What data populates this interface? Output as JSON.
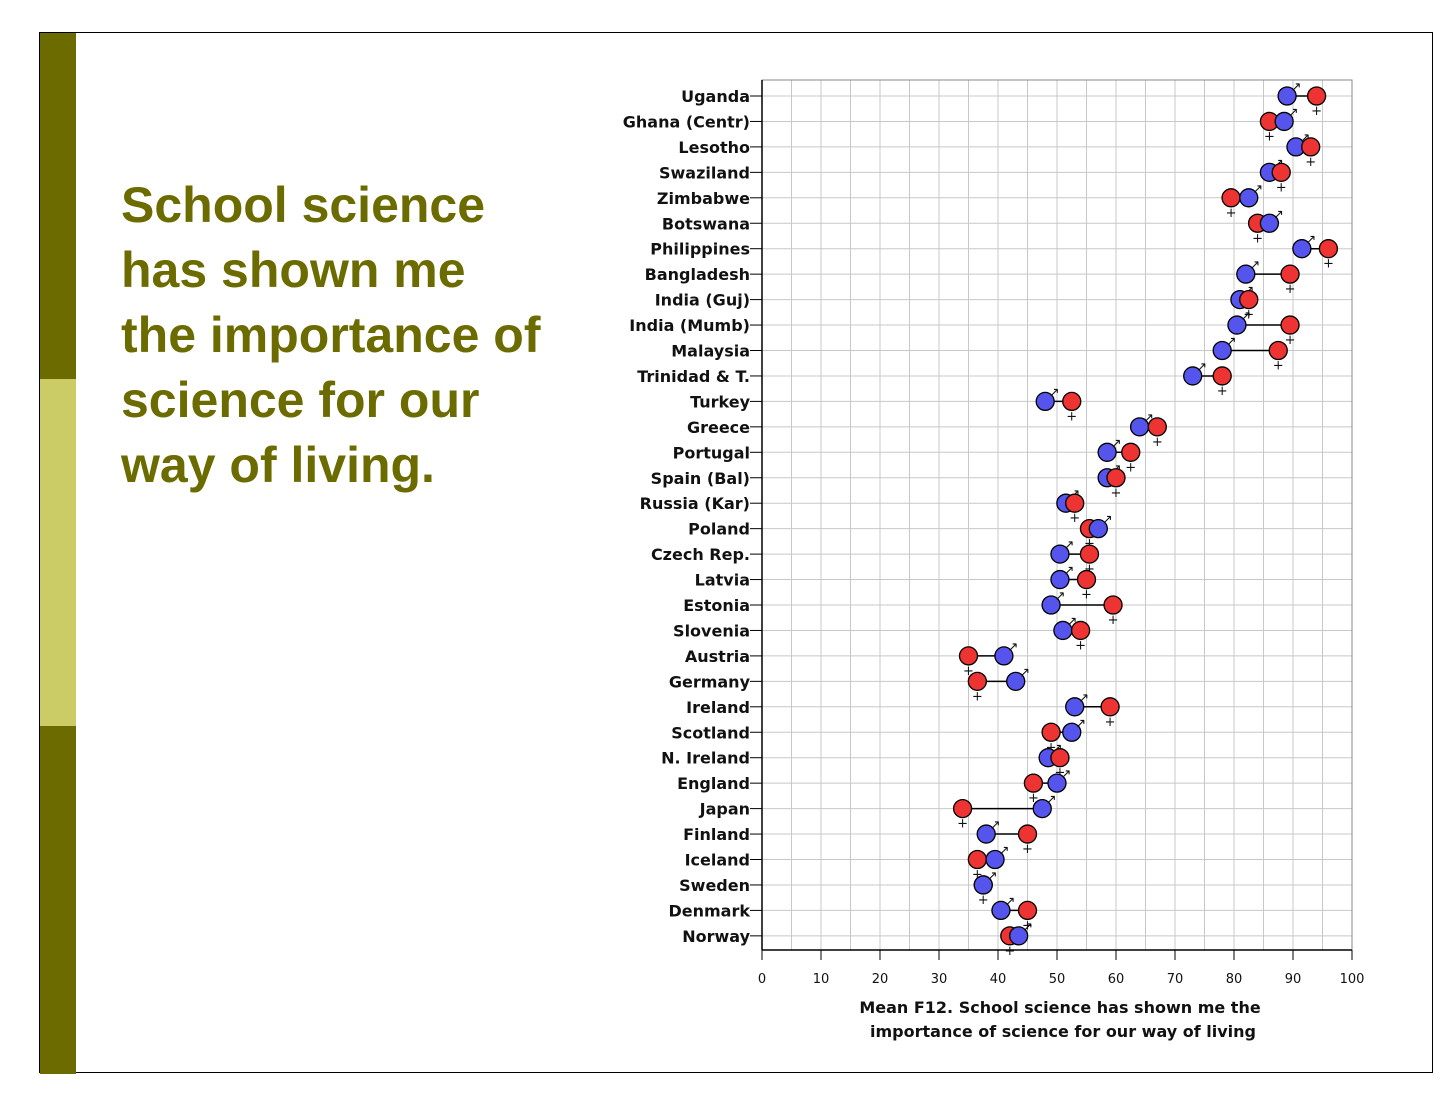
{
  "slide": {
    "title": "School science has shown me the importance of science for our way of living.",
    "colors": {
      "accent_dark": "#6b6b00",
      "accent_light": "#cccc66",
      "title_text": "#6b6b00"
    }
  },
  "chart_data": {
    "type": "scatter",
    "subtype": "dumbbell",
    "xlabel_line1": "Mean F12. School science has shown me the",
    "xlabel_line2": "importance of science for our way of living",
    "xlim": [
      0,
      100
    ],
    "xticks": [
      0,
      10,
      20,
      30,
      40,
      50,
      60,
      70,
      80,
      90,
      100
    ],
    "grid": true,
    "series": [
      {
        "name": "Boys",
        "symbol": "♂",
        "color": "#5555ee"
      },
      {
        "name": "Girls",
        "symbol": "♀",
        "color": "#ee3333"
      }
    ],
    "categories": [
      "Uganda",
      "Ghana (Centr)",
      "Lesotho",
      "Swaziland",
      "Zimbabwe",
      "Botswana",
      "Philippines",
      "Bangladesh",
      "India (Guj)",
      "India (Mumb)",
      "Malaysia",
      "Trinidad & T.",
      "Turkey",
      "Greece",
      "Portugal",
      "Spain (Bal)",
      "Russia (Kar)",
      "Poland",
      "Czech Rep.",
      "Latvia",
      "Estonia",
      "Slovenia",
      "Austria",
      "Germany",
      "Ireland",
      "Scotland",
      "N. Ireland",
      "England",
      "Japan",
      "Finland",
      "Iceland",
      "Sweden",
      "Denmark",
      "Norway"
    ],
    "boys": [
      89,
      88.5,
      90.5,
      86,
      82.5,
      86,
      91.5,
      82,
      81,
      80.5,
      78,
      73,
      48,
      64,
      58.5,
      58.5,
      51.5,
      57,
      50.5,
      50.5,
      49,
      51,
      41,
      43,
      53,
      52.5,
      48.5,
      50,
      47.5,
      38,
      39.5,
      37.5,
      40.5,
      43.5
    ],
    "girls": [
      94,
      86,
      93,
      88,
      79.5,
      84,
      96,
      89.5,
      82.5,
      89.5,
      87.5,
      78,
      52.5,
      67,
      62.5,
      60,
      53,
      55.5,
      55.5,
      55,
      59.5,
      54,
      35,
      36.5,
      59,
      49,
      50.5,
      46,
      34,
      45,
      36.5,
      37.5,
      45,
      42
    ]
  }
}
